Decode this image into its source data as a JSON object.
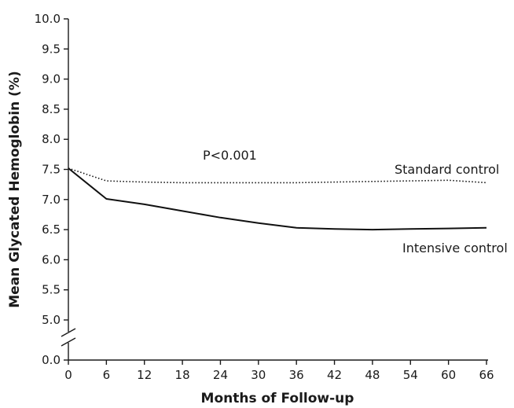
{
  "chart_data": {
    "type": "line",
    "xlabel": "Months of Follow-up",
    "ylabel": "Mean Glycated Hemoglobin (%)",
    "xlim": [
      0,
      66
    ],
    "x_ticks": [
      0,
      6,
      12,
      18,
      24,
      30,
      36,
      42,
      48,
      54,
      60,
      66
    ],
    "x_tick_labels": [
      "0",
      "6",
      "12",
      "18",
      "24",
      "30",
      "36",
      "42",
      "48",
      "54",
      "60",
      "66"
    ],
    "ylim": [
      5.0,
      10.0
    ],
    "y_ticks": [
      5.0,
      5.5,
      6.0,
      6.5,
      7.0,
      7.5,
      8.0,
      8.5,
      9.0,
      9.5,
      10.0
    ],
    "y_tick_labels": [
      "5.0",
      "5.5",
      "6.0",
      "6.5",
      "7.0",
      "7.5",
      "8.0",
      "8.5",
      "9.0",
      "9.5",
      "10.0"
    ],
    "y_axis_break": true,
    "y_break_tick_value": 0.0,
    "y_break_tick_label": "0.0",
    "grid": false,
    "annotation": "P<0.001",
    "series": [
      {
        "name": "Standard control",
        "line_style": "dotted",
        "x": [
          0,
          6,
          12,
          18,
          24,
          30,
          36,
          42,
          48,
          54,
          60,
          66
        ],
        "y": [
          7.52,
          7.31,
          7.29,
          7.28,
          7.28,
          7.28,
          7.28,
          7.29,
          7.3,
          7.31,
          7.32,
          7.28
        ]
      },
      {
        "name": "Intensive control",
        "line_style": "solid",
        "x": [
          0,
          6,
          12,
          18,
          24,
          30,
          36,
          42,
          48,
          54,
          60,
          66
        ],
        "y": [
          7.52,
          7.01,
          6.92,
          6.81,
          6.7,
          6.61,
          6.53,
          6.51,
          6.5,
          6.51,
          6.52,
          6.53
        ]
      }
    ]
  }
}
